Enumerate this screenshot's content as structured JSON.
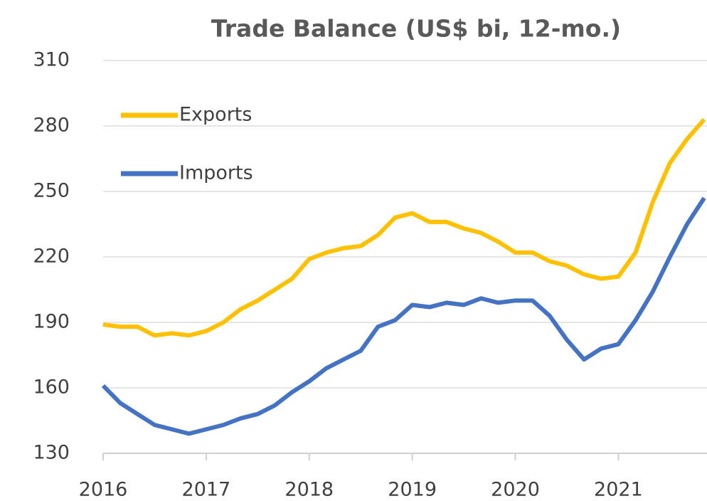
{
  "chart_data": {
    "type": "line",
    "title": "Trade Balance (US$ bi, 12-mo.)",
    "x": [
      2016,
      2016.167,
      2016.333,
      2016.5,
      2016.667,
      2016.833,
      2017,
      2017.167,
      2017.333,
      2017.5,
      2017.667,
      2017.833,
      2018,
      2018.167,
      2018.333,
      2018.5,
      2018.667,
      2018.833,
      2019,
      2019.167,
      2019.333,
      2019.5,
      2019.667,
      2019.833,
      2020,
      2020.167,
      2020.333,
      2020.5,
      2020.667,
      2020.833,
      2021,
      2021.167,
      2021.333,
      2021.5,
      2021.667,
      2021.833
    ],
    "series": [
      {
        "name": "Exports",
        "color": "#ffc000",
        "values": [
          189,
          188,
          188,
          184,
          185,
          184,
          186,
          190,
          196,
          200,
          205,
          210,
          219,
          222,
          224,
          225,
          230,
          238,
          240,
          236,
          236,
          233,
          231,
          227,
          222,
          222,
          218,
          216,
          212,
          210,
          211,
          222,
          245,
          263,
          274,
          283
        ]
      },
      {
        "name": "Imports",
        "color": "#4472c4",
        "values": [
          161,
          153,
          148,
          143,
          141,
          139,
          141,
          143,
          146,
          148,
          152,
          158,
          163,
          169,
          173,
          177,
          188,
          191,
          198,
          197,
          199,
          198,
          201,
          199,
          200,
          200,
          193,
          182,
          173,
          178,
          180,
          191,
          204,
          220,
          235,
          247
        ]
      }
    ],
    "xlim": [
      2016,
      2021.86
    ],
    "xticks": [
      2016,
      2017,
      2018,
      2019,
      2020,
      2021
    ],
    "ylim": [
      130,
      310
    ],
    "yticks": [
      130,
      160,
      190,
      220,
      250,
      280,
      310
    ],
    "grid": true,
    "legend": "upper left"
  }
}
